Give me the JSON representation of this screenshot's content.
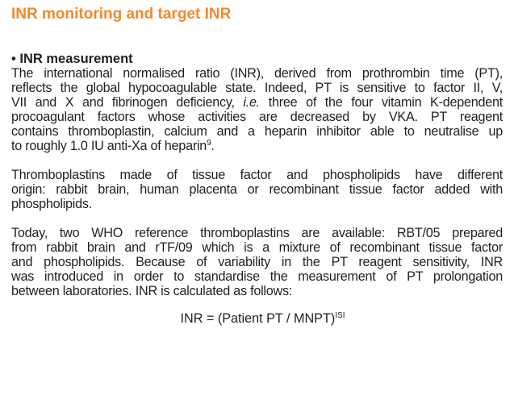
{
  "title": "INR monitoring and target INR",
  "section": {
    "bullet": "•",
    "heading": "INR measurement"
  },
  "paragraphs": [
    {
      "lines": [
        "The international normalised ratio (INR), derived from prothrombin time (PT),",
        "reflects the global hypocoagulable state. Indeed, PT is sensitive to factor II, V,",
        "VII and X and fibrinogen deficiency, ",
        "procoagulant factors whose activities are decreased by VKA. PT reagent",
        "contains thromboplastin, calcium and a heparin inhibitor able to neutralise up",
        "to roughly 1.0 IU anti-Xa of heparin"
      ],
      "italic_ie": "i.e.",
      "line3_tail": " three of the four vitamin K-dependent",
      "reference": "9",
      "end": "."
    },
    {
      "lines": [
        "Thromboplastins made of tissue factor and phospholipids have different",
        "origin: rabbit brain, human placenta or recombinant tissue factor added with",
        "phospholipids."
      ]
    },
    {
      "lines": [
        "Today, two WHO reference thromboplastins are available: RBT/05 prepared",
        "from rabbit brain and rTF/09 which is a mixture of recombinant tissue factor",
        "and phospholipids. Because of variability in the PT reagent sensitivity, INR",
        "was introduced in order to standardise the measurement of PT prolongation",
        "between laboratories. INR is calculated as follows:"
      ]
    }
  ],
  "formula": {
    "base": "INR = (Patient PT / MNPT)",
    "exponent": "ISI"
  },
  "colors": {
    "title": "#f2892a",
    "text": "#231f20"
  }
}
